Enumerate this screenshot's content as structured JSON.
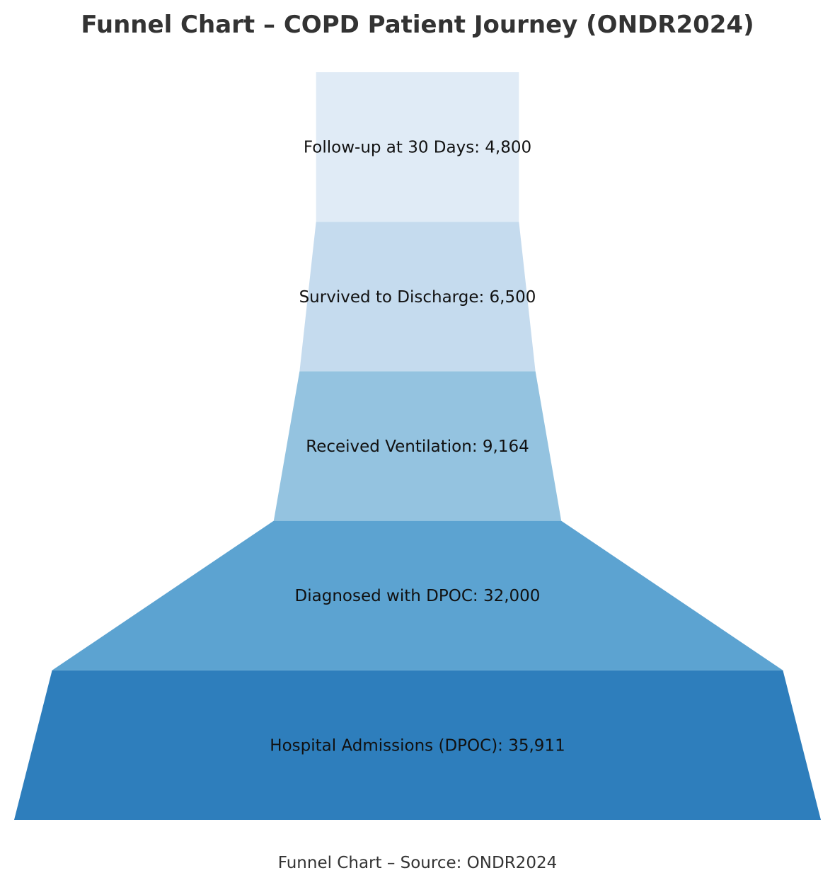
{
  "chart_data": {
    "type": "funnel",
    "title": "Funnel Chart – COPD Patient Journey (ONDR2024)",
    "caption": "Funnel Chart – Source: ONDR2024",
    "stages": [
      {
        "label": "Hospital Admissions (DPOC)",
        "value": 35911,
        "display": "Hospital Admissions (DPOC): 35,911",
        "color": "#2e7ebc"
      },
      {
        "label": "Diagnosed with DPOC",
        "value": 32000,
        "display": "Diagnosed with DPOC: 32,000",
        "color": "#5ca3d1"
      },
      {
        "label": "Received Ventilation",
        "value": 9164,
        "display": "Received Ventilation: 9,164",
        "color": "#94c3e0"
      },
      {
        "label": "Survived to Discharge",
        "value": 6500,
        "display": "Survived to Discharge: 6,500",
        "color": "#c5dbee"
      },
      {
        "label": "Follow-up at 30 Days",
        "value": 4800,
        "display": "Follow-up at 30 Days: 4,800",
        "color": "#e0ebf6"
      }
    ],
    "xlabel": "",
    "ylabel": "",
    "grid": false,
    "legend": "none"
  }
}
